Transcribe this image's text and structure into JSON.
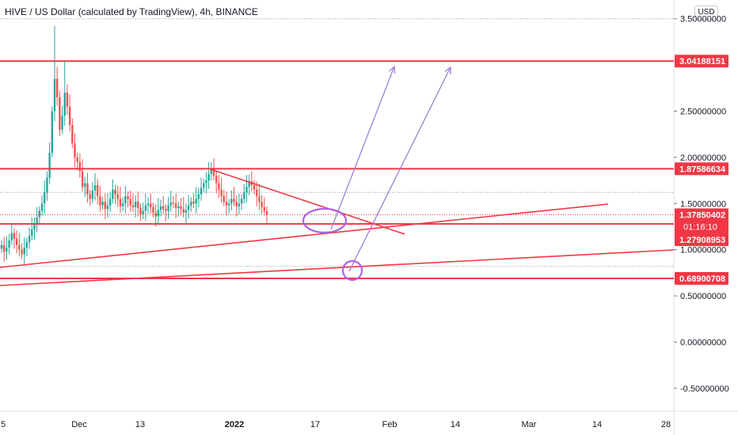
{
  "header": {
    "title": "HIVE / US Dollar (calculated by TradingView), 4h, BINANCE",
    "currency": "USD"
  },
  "colors": {
    "up": "#26a69a",
    "down": "#ef5350",
    "level_line": "#f23645",
    "trend_line": "#f23645",
    "arrow": "#9c7fd8",
    "ellipse": "#b061e0",
    "dotted_grid": "#9598a1",
    "axis_border": "#e0e3eb"
  },
  "chart_data": {
    "type": "candlestick",
    "title": "HIVE / US Dollar (calculated by TradingView), 4h, BINANCE",
    "ylim": [
      -0.65,
      3.6
    ],
    "y_ticks": [
      {
        "value": 3.5,
        "label": "3.50000000"
      },
      {
        "value": 2.5,
        "label": "2.50000000"
      },
      {
        "value": 2.0,
        "label": "2.00000000"
      },
      {
        "value": 1.5,
        "label": "1.50000000"
      },
      {
        "value": 1.0,
        "label": "1.00000000"
      },
      {
        "value": 0.5,
        "label": "0.50000000"
      },
      {
        "value": 0.0,
        "label": "0.00000000"
      },
      {
        "value": -0.5,
        "label": "-0.50000000"
      }
    ],
    "x_ticks": [
      {
        "label": "5",
        "bold": false
      },
      {
        "label": "Dec",
        "bold": false
      },
      {
        "label": "13",
        "bold": false
      },
      {
        "label": "2022",
        "bold": true
      },
      {
        "label": "17",
        "bold": false
      },
      {
        "label": "Feb",
        "bold": false
      },
      {
        "label": "14",
        "bold": false
      },
      {
        "label": "Mar",
        "bold": false
      },
      {
        "label": "14",
        "bold": false
      },
      {
        "label": "28",
        "bold": false
      }
    ],
    "horizontal_levels": [
      {
        "value": 3.04188151,
        "label": "3.04188151"
      },
      {
        "value": 1.87586634,
        "label": "1.87586634"
      },
      {
        "value": 1.27908953,
        "label": "1.27908953"
      },
      {
        "value": 0.68900708,
        "label": "0.68900708"
      }
    ],
    "last_price": {
      "value": 1.3785,
      "label": "1.37850402",
      "countdown": "01:16:10"
    },
    "dotted_levels": [
      3.5,
      1.62,
      0.82
    ],
    "candles_close": [
      1.05,
      0.98,
      1.02,
      1.1,
      1.18,
      1.12,
      1.05,
      1.0,
      0.95,
      1.02,
      1.08,
      1.15,
      1.22,
      1.28,
      1.35,
      1.42,
      1.5,
      1.62,
      1.78,
      2.05,
      2.5,
      2.85,
      2.65,
      2.3,
      2.45,
      2.7,
      2.55,
      2.35,
      2.15,
      2.0,
      1.95,
      1.85,
      1.68,
      1.72,
      1.6,
      1.55,
      1.64,
      1.7,
      1.58,
      1.48,
      1.52,
      1.44,
      1.48,
      1.55,
      1.65,
      1.6,
      1.55,
      1.47,
      1.5,
      1.58,
      1.55,
      1.48,
      1.46,
      1.52,
      1.45,
      1.38,
      1.42,
      1.48,
      1.5,
      1.46,
      1.4,
      1.36,
      1.43,
      1.47,
      1.44,
      1.42,
      1.48,
      1.51,
      1.5,
      1.45,
      1.47,
      1.44,
      1.4,
      1.43,
      1.48,
      1.52,
      1.5,
      1.55,
      1.6,
      1.67,
      1.72,
      1.75,
      1.82,
      1.88,
      1.8,
      1.72,
      1.65,
      1.58,
      1.52,
      1.48,
      1.5,
      1.55,
      1.52,
      1.47,
      1.5,
      1.55,
      1.62,
      1.68,
      1.74,
      1.7,
      1.65,
      1.58,
      1.52,
      1.46,
      1.42,
      1.38
    ]
  }
}
